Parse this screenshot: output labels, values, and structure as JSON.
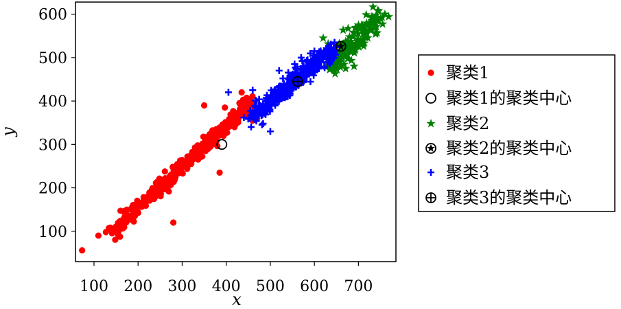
{
  "chart_data": {
    "type": "scatter",
    "title": "",
    "xlabel": "x",
    "ylabel": "y",
    "xlim": [
      58,
      785
    ],
    "ylim": [
      30,
      628
    ],
    "x_ticks": [
      100,
      200,
      300,
      400,
      500,
      600,
      700
    ],
    "y_ticks": [
      100,
      200,
      300,
      400,
      500,
      600
    ],
    "grid": false,
    "legend_position": "outside-right",
    "series": [
      {
        "name": "聚类1",
        "marker": "circle",
        "color": "#ff0000",
        "trend": {
          "from": [
            140,
            95
          ],
          "to": [
            460,
            400
          ],
          "count": 420,
          "spread": 9
        },
        "points": [
          [
            73,
            56
          ],
          [
            110,
            90
          ],
          [
            127,
            98
          ],
          [
            280,
            120
          ],
          [
            385,
            235
          ],
          [
            397,
            385
          ],
          [
            460,
            355
          ],
          [
            350,
            390
          ],
          [
            435,
            420
          ],
          [
            160,
            110
          ],
          [
            330,
            280
          ],
          [
            430,
            395
          ],
          [
            470,
            360
          ]
        ]
      },
      {
        "name": "聚类2",
        "marker": "star",
        "color": "#008000",
        "trend": {
          "from": [
            635,
            480
          ],
          "to": [
            750,
            598
          ],
          "count": 140,
          "spread": 14
        },
        "points": [
          [
            760,
            600
          ],
          [
            740,
            598
          ],
          [
            690,
            480
          ],
          [
            650,
            475
          ],
          [
            700,
            575
          ],
          [
            620,
            545
          ],
          [
            645,
            470
          ]
        ]
      },
      {
        "name": "聚类3",
        "marker": "plus",
        "color": "#0000ff",
        "trend": {
          "from": [
            455,
            360
          ],
          "to": [
            645,
            520
          ],
          "count": 400,
          "spread": 11
        },
        "points": [
          [
            405,
            420
          ],
          [
            460,
            425
          ],
          [
            555,
            485
          ],
          [
            570,
            500
          ],
          [
            600,
            515
          ],
          [
            475,
            385
          ],
          [
            520,
            470
          ],
          [
            500,
            330
          ],
          [
            440,
            362
          ]
        ]
      }
    ],
    "centers": [
      {
        "name": "聚类1的聚类中心",
        "marker": "circle-open",
        "x": 390,
        "y": 300
      },
      {
        "name": "聚类2的聚类中心",
        "marker": "star-in-circle",
        "x": 660,
        "y": 526
      },
      {
        "name": "聚类3的聚类中心",
        "marker": "plus-in-circle",
        "x": 562,
        "y": 445
      }
    ],
    "legend_order": [
      "聚类1",
      "聚类1的聚类中心",
      "聚类2",
      "聚类2的聚类中心",
      "聚类3",
      "聚类3的聚类中心"
    ]
  }
}
